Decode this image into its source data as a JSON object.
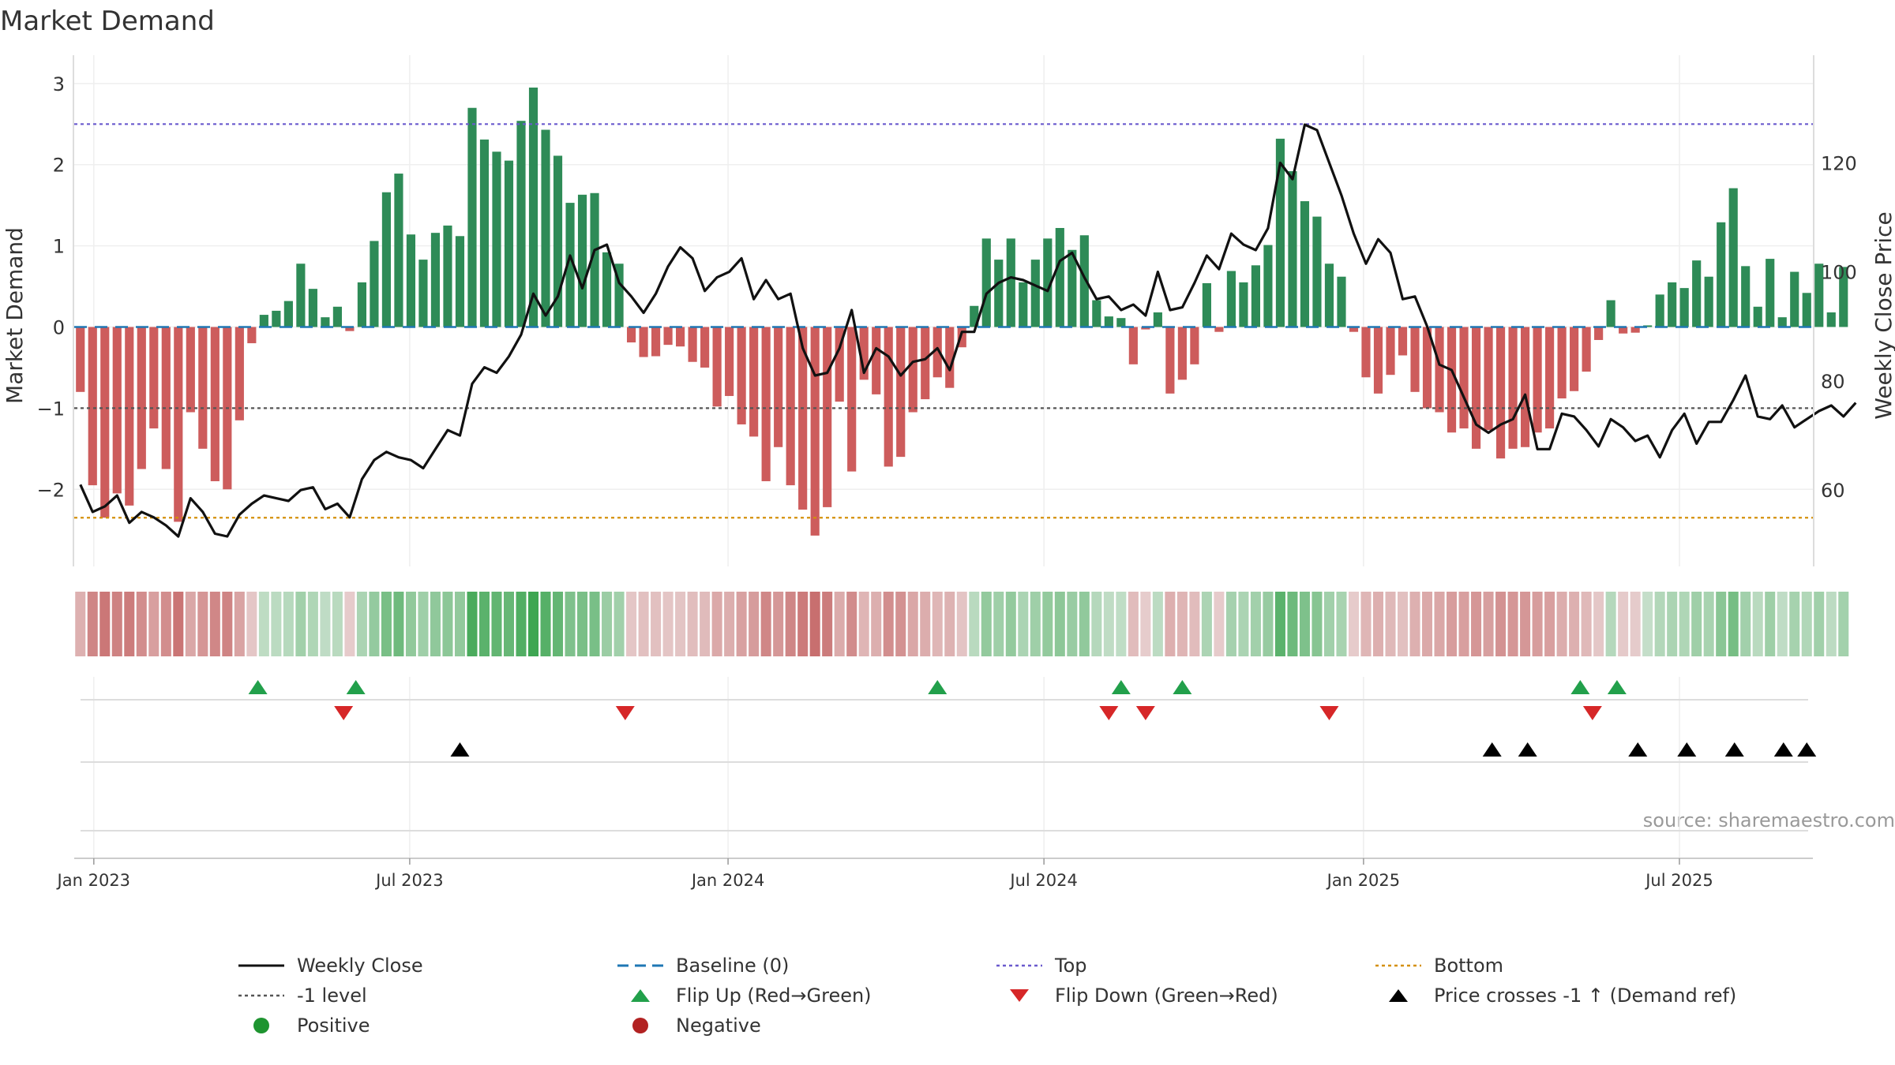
{
  "chart_data": {
    "type": "bar",
    "title": "Market Demand",
    "ylabel_left": "Market Demand",
    "ylabel_right": "Weekly Close Price",
    "ylim_left": [
      -2.95,
      3.3
    ],
    "ylim_right": [
      46.0,
      139.0
    ],
    "yticks_left": [
      {
        "v": 3,
        "label": "3"
      },
      {
        "v": 2,
        "label": "2"
      },
      {
        "v": 1,
        "label": "1"
      },
      {
        "v": 0,
        "label": "0"
      },
      {
        "v": -1,
        "label": "−1"
      },
      {
        "v": -2,
        "label": "−2"
      }
    ],
    "yticks_right": [
      {
        "v": 120,
        "label": "120"
      },
      {
        "v": 100,
        "label": "100"
      },
      {
        "v": 80,
        "label": "80"
      },
      {
        "v": 60,
        "label": "60"
      }
    ],
    "x_range_weeks": [
      0,
      142.0
    ],
    "xticks": [
      {
        "w": 1.6,
        "label": "Jan 2023"
      },
      {
        "w": 27.4,
        "label": "Jul 2023"
      },
      {
        "w": 53.4,
        "label": "Jan 2024"
      },
      {
        "w": 79.2,
        "label": "Jul 2024"
      },
      {
        "w": 105.3,
        "label": "Jan 2025"
      },
      {
        "w": 131.1,
        "label": "Jul 2025"
      }
    ],
    "levels": {
      "top": 2.5,
      "bottom": -2.35,
      "minus_one": -1.0,
      "baseline": 0
    },
    "demand": [
      -0.8,
      -1.95,
      -2.35,
      -2.05,
      -2.2,
      -1.75,
      -1.25,
      -1.75,
      -2.4,
      -1.05,
      -1.5,
      -1.9,
      -2.0,
      -1.15,
      -0.2,
      0.15,
      0.2,
      0.32,
      0.78,
      0.47,
      0.12,
      0.25,
      -0.05,
      0.55,
      1.06,
      1.66,
      1.89,
      1.14,
      0.83,
      1.16,
      1.25,
      1.12,
      2.7,
      2.31,
      2.16,
      2.05,
      2.54,
      2.95,
      2.43,
      2.11,
      1.53,
      1.63,
      1.65,
      0.92,
      0.78,
      -0.19,
      -0.37,
      -0.36,
      -0.22,
      -0.24,
      -0.43,
      -0.5,
      -0.98,
      -0.85,
      -1.2,
      -1.35,
      -1.9,
      -1.48,
      -1.95,
      -2.25,
      -2.57,
      -2.22,
      -0.92,
      -1.78,
      -0.65,
      -0.83,
      -1.72,
      -1.6,
      -1.05,
      -0.89,
      -0.62,
      -0.75,
      -0.25,
      0.26,
      1.09,
      0.83,
      1.09,
      0.55,
      0.83,
      1.09,
      1.22,
      0.95,
      1.13,
      0.33,
      0.13,
      0.11,
      -0.46,
      -0.03,
      0.18,
      -0.82,
      -0.65,
      -0.46,
      0.54,
      -0.06,
      0.69,
      0.55,
      0.76,
      1.01,
      2.32,
      1.92,
      1.55,
      1.36,
      0.78,
      0.62,
      -0.06,
      -0.62,
      -0.82,
      -0.59,
      -0.35,
      -0.8,
      -1.0,
      -1.05,
      -1.3,
      -1.25,
      -1.5,
      -1.27,
      -1.62,
      -1.5,
      -1.48,
      -1.3,
      -1.25,
      -0.88,
      -0.79,
      -0.55,
      -0.16,
      0.33,
      -0.08,
      -0.07,
      0.02,
      0.4,
      0.55,
      0.48,
      0.82,
      0.62,
      1.29,
      1.71,
      0.75,
      0.25,
      0.84,
      0.12,
      0.68,
      0.42,
      0.78,
      0.18,
      0.74
    ],
    "price": [
      61,
      56,
      57,
      59,
      54,
      56,
      55,
      53.5,
      51.5,
      58.5,
      56,
      52,
      51.5,
      55.5,
      57.5,
      59,
      58.5,
      58,
      60,
      60.5,
      56.5,
      57.5,
      55,
      62,
      65.5,
      67,
      66,
      65.5,
      64,
      67.5,
      71,
      70,
      79.5,
      82.5,
      81.5,
      84.5,
      88.5,
      96,
      92,
      95.5,
      103,
      97,
      104,
      105,
      98,
      95.5,
      92.5,
      96,
      101,
      104.5,
      102.5,
      96.5,
      99,
      100,
      102.5,
      95,
      98.5,
      95,
      96,
      86,
      81,
      81.5,
      86,
      93,
      81.5,
      86,
      84.5,
      81,
      83.5,
      84,
      86,
      82,
      89,
      89,
      96,
      98,
      99,
      98.5,
      97.5,
      96.5,
      102,
      103.5,
      99,
      95,
      95.5,
      93,
      94,
      92,
      100,
      93,
      93.5,
      98,
      103,
      100.5,
      107,
      105,
      104,
      108,
      120,
      117,
      127,
      126,
      120,
      114,
      107,
      101.5,
      106,
      103.5,
      95,
      95.5,
      90,
      83,
      82,
      77,
      72,
      70.5,
      72,
      73,
      77.5,
      67.5,
      67.5,
      74,
      73.5,
      71,
      68,
      73,
      71.5,
      69,
      70,
      66,
      71,
      74,
      68.5,
      72.5,
      72.5,
      76.5,
      81,
      73.5,
      73,
      75.5,
      71.5,
      73,
      74.5,
      75.5,
      73.5,
      76
    ],
    "flip_up_weeks": [
      15,
      23,
      70.5,
      85.5,
      90.5,
      123,
      126
    ],
    "flip_down_weeks": [
      22,
      45,
      84.5,
      87.5,
      102.5,
      124
    ],
    "price_cross_weeks": [
      31.5,
      115.8,
      118.7,
      127.7,
      131.7,
      135.6,
      139.6,
      141.5
    ],
    "watermark": "source: sharemaestro.com",
    "legend": [
      {
        "label": "Weekly Close",
        "style": "line-solid",
        "color": "#111111"
      },
      {
        "label": "Baseline (0)",
        "style": "line-dash",
        "color": "#1f77b4"
      },
      {
        "label": "Top",
        "style": "line-dot",
        "color": "#6a5acd"
      },
      {
        "label": "Bottom",
        "style": "line-dot",
        "color": "#d4900a"
      },
      {
        "label": "-1 level",
        "style": "line-dot",
        "color": "#555555"
      },
      {
        "label": "Flip Up (Red→Green)",
        "style": "tri-up",
        "color": "#22a04b"
      },
      {
        "label": "Flip Down (Green→Red)",
        "style": "tri-down",
        "color": "#d62728"
      },
      {
        "label": "Price crosses -1 ↑ (Demand ref)",
        "style": "tri-up",
        "color": "#000000"
      },
      {
        "label": "Positive",
        "style": "dot",
        "color": "#1e9430"
      },
      {
        "label": "Negative",
        "style": "dot",
        "color": "#b22222"
      }
    ],
    "colors": {
      "positive": "#2e8b57",
      "negative": "#cd5c5c",
      "price": "#111111"
    }
  }
}
